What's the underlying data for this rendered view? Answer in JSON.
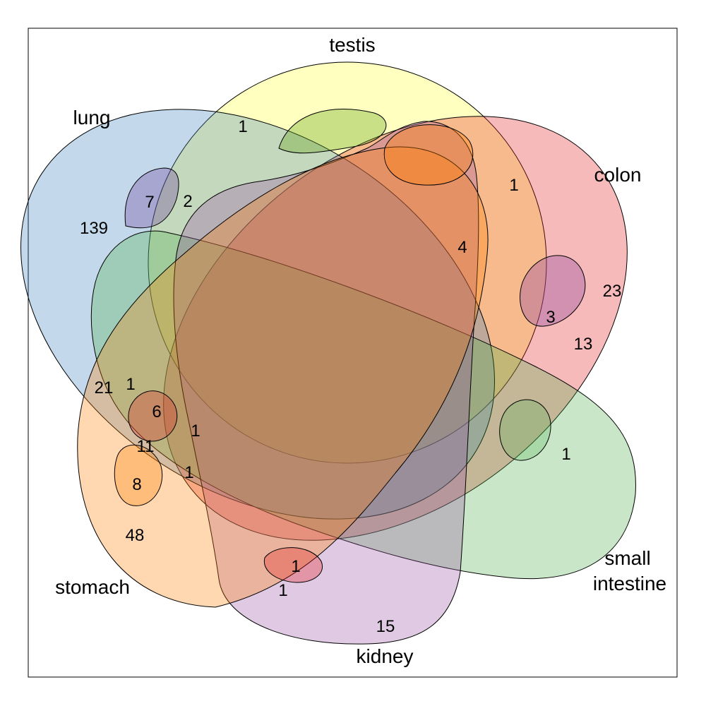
{
  "chart_data": {
    "type": "venn",
    "sets": [
      {
        "key": "testis",
        "label": "testis",
        "label_lines": [
          "testis"
        ],
        "color": "#ffff66"
      },
      {
        "key": "colon",
        "label": "colon",
        "label_lines": [
          "colon"
        ],
        "color": "#e41a1c"
      },
      {
        "key": "small_intestine",
        "label": "small intestine",
        "label_lines": [
          "small",
          "intestine"
        ],
        "color": "#4daf4a"
      },
      {
        "key": "kidney",
        "label": "kidney",
        "label_lines": [
          "kidney"
        ],
        "color": "#984ea3"
      },
      {
        "key": "stomach",
        "label": "stomach",
        "label_lines": [
          "stomach"
        ],
        "color": "#ff7f00"
      },
      {
        "key": "lung",
        "label": "lung",
        "label_lines": [
          "lung"
        ],
        "color": "#377eb8"
      }
    ],
    "counts": [
      {
        "value": "139"
      },
      {
        "value": "7"
      },
      {
        "value": "2"
      },
      {
        "value": "1"
      },
      {
        "value": "1"
      },
      {
        "value": "4"
      },
      {
        "value": "23"
      },
      {
        "value": "3"
      },
      {
        "value": "13"
      },
      {
        "value": "1"
      },
      {
        "value": "15"
      },
      {
        "value": "1"
      },
      {
        "value": "1"
      },
      {
        "value": "48"
      },
      {
        "value": "8"
      },
      {
        "value": "11"
      },
      {
        "value": "1"
      },
      {
        "value": "6"
      },
      {
        "value": "1"
      },
      {
        "value": "21"
      },
      {
        "value": "1"
      }
    ]
  }
}
